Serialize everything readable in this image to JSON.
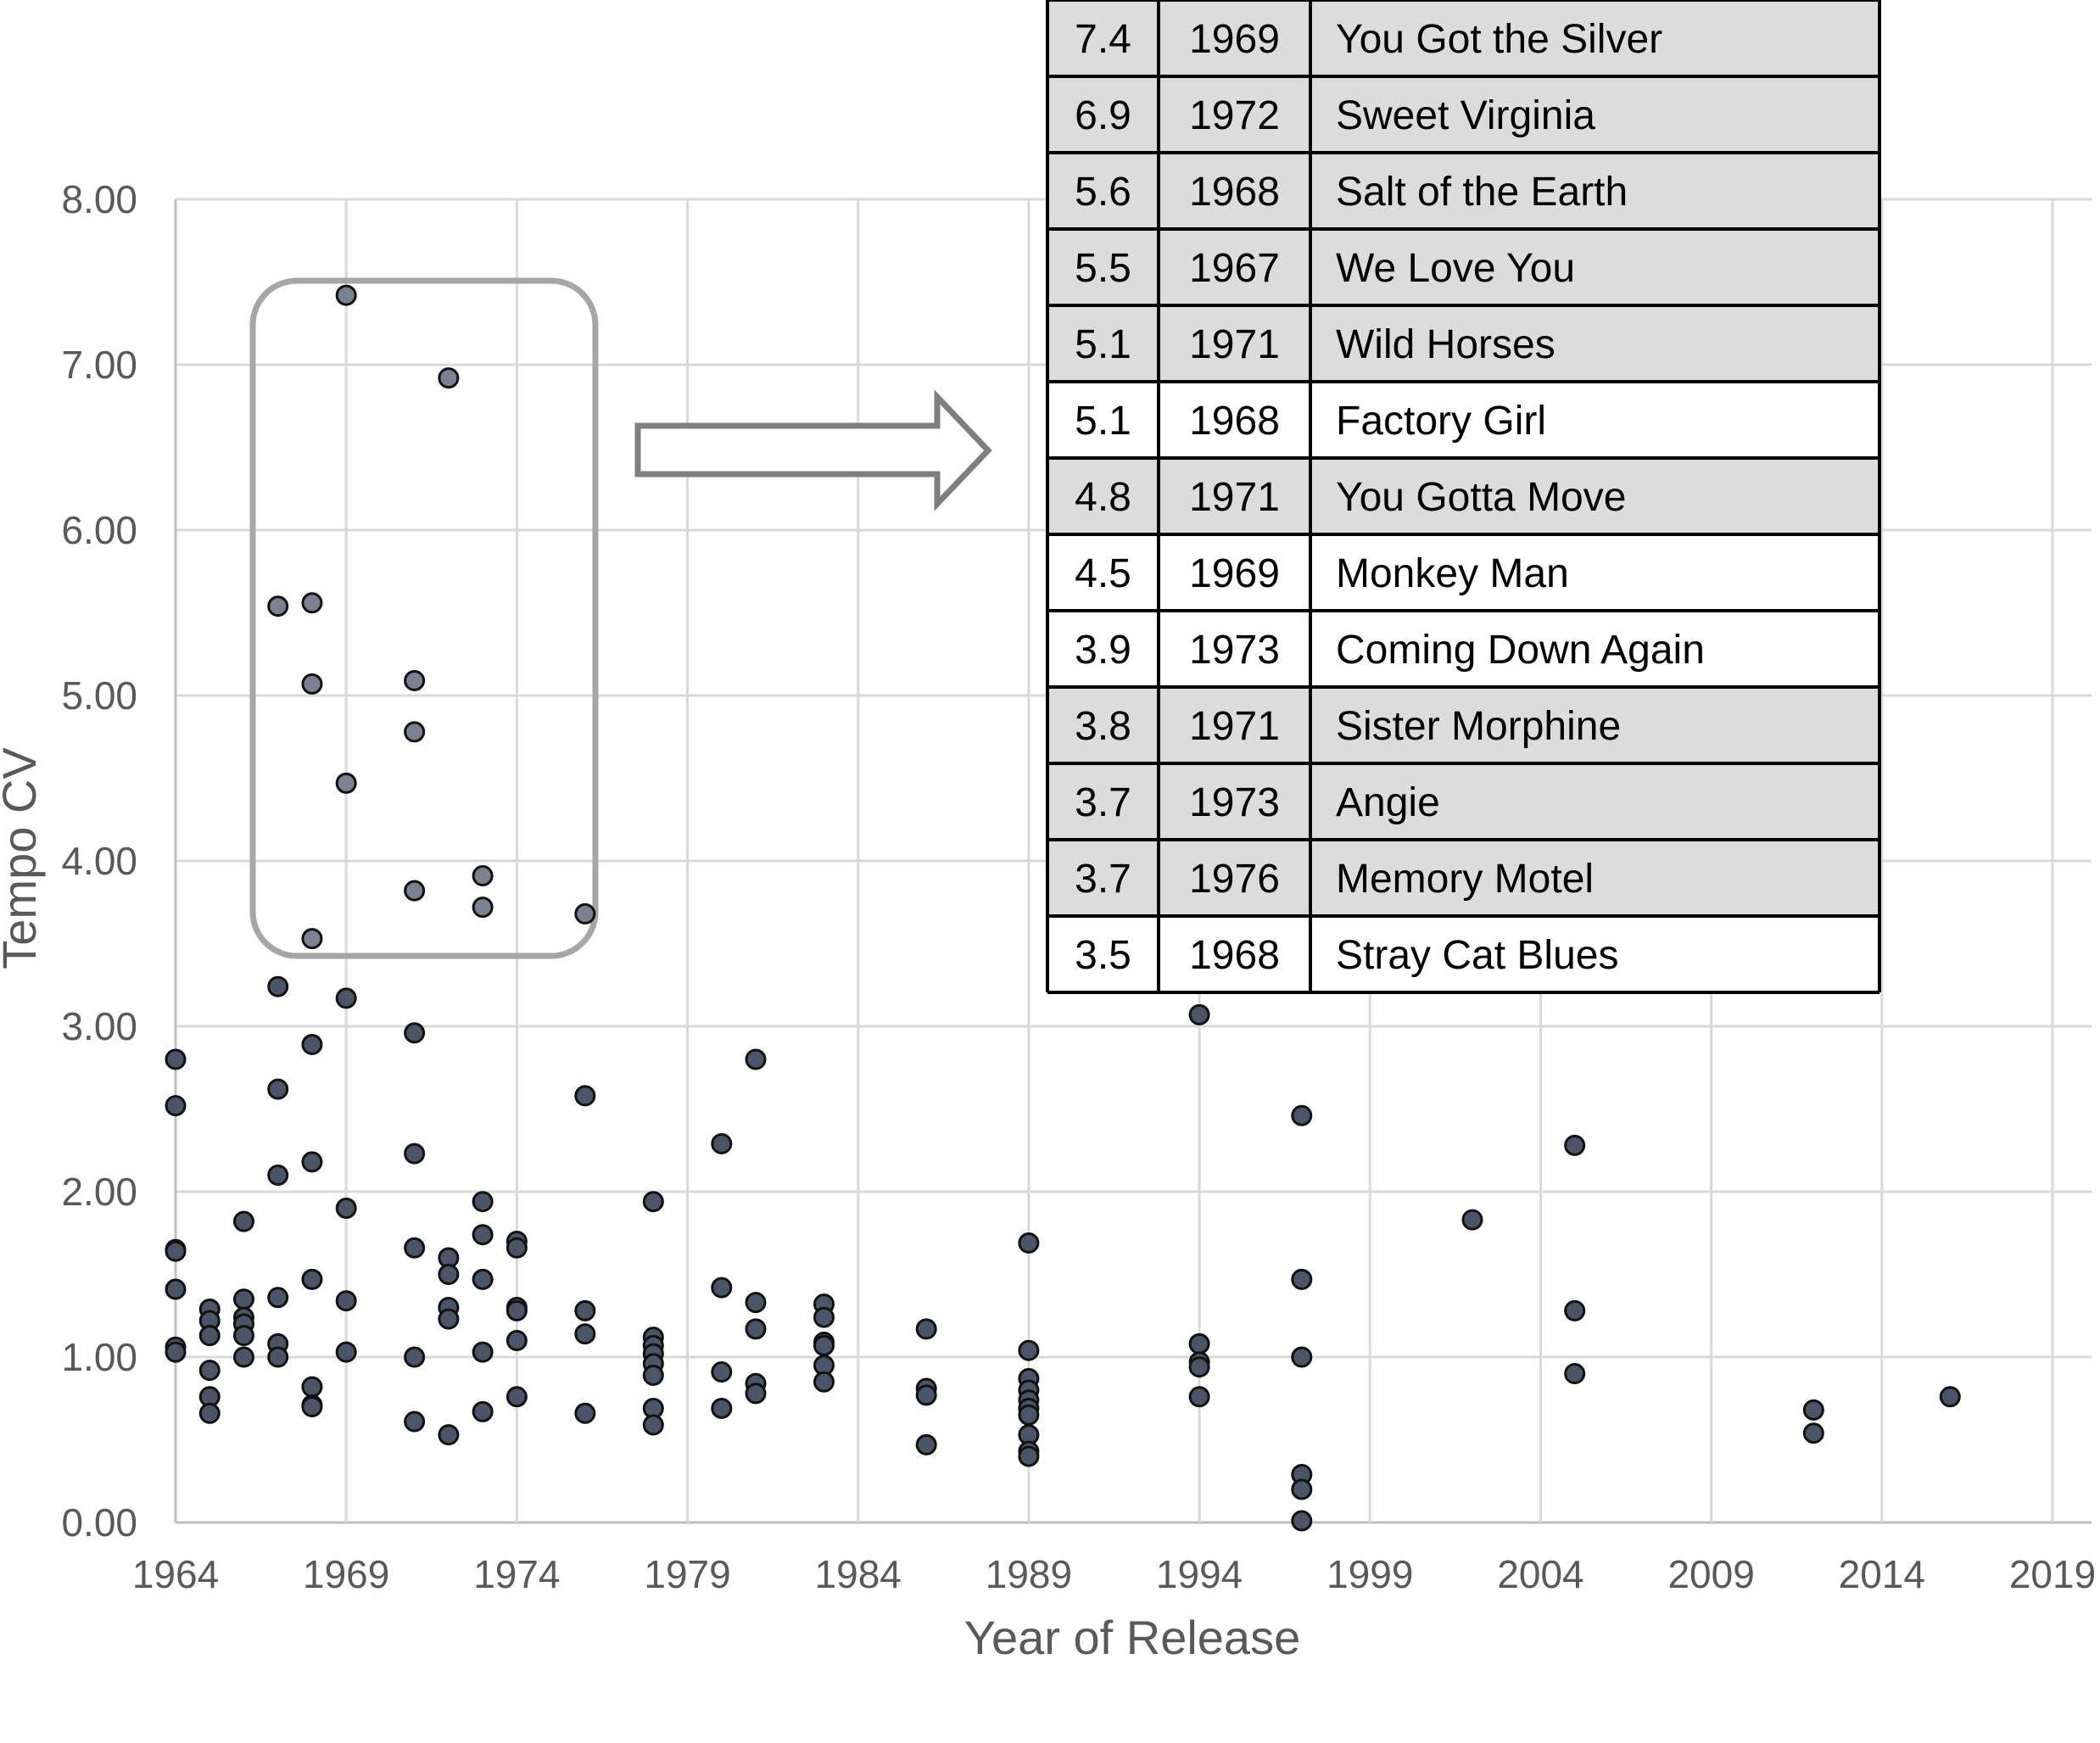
{
  "chart_data": {
    "type": "scatter",
    "title": "",
    "xlabel": "Year of Release",
    "ylabel": "Tempo CV",
    "xlim": [
      1964,
      2020
    ],
    "ylim": [
      0,
      8
    ],
    "x_ticks": [
      "1964",
      "1969",
      "1974",
      "1979",
      "1984",
      "1989",
      "1994",
      "1999",
      "2004",
      "2009",
      "2014",
      "2019"
    ],
    "y_ticks": [
      "0.00",
      "1.00",
      "2.00",
      "3.00",
      "4.00",
      "5.00",
      "6.00",
      "7.00",
      "8.00"
    ],
    "grid": true,
    "legend": "none",
    "colors": {
      "point_fill": "#4a5568",
      "point_edge": "#111111",
      "highlight_fill": "#7a8190",
      "gridline": "#d9d9d9",
      "axis_text": "#595959",
      "callout_stroke": "#a6a6a6",
      "arrow_stroke": "#7f7f7f",
      "row_shade": "#dcdcdc"
    },
    "points": [
      {
        "x": 1969,
        "y": 7.42
      },
      {
        "x": 1972,
        "y": 6.92
      },
      {
        "x": 1967,
        "y": 5.54
      },
      {
        "x": 1968,
        "y": 5.56
      },
      {
        "x": 1968,
        "y": 5.07
      },
      {
        "x": 1971,
        "y": 5.09
      },
      {
        "x": 1971,
        "y": 4.78
      },
      {
        "x": 1969,
        "y": 4.47
      },
      {
        "x": 1971,
        "y": 3.82
      },
      {
        "x": 1973,
        "y": 3.91
      },
      {
        "x": 1973,
        "y": 3.72
      },
      {
        "x": 1976,
        "y": 3.68
      },
      {
        "x": 1968,
        "y": 3.53
      },
      {
        "x": 1967,
        "y": 3.24
      },
      {
        "x": 1969,
        "y": 3.17
      },
      {
        "x": 1968,
        "y": 2.89
      },
      {
        "x": 1971,
        "y": 2.96
      },
      {
        "x": 1964,
        "y": 2.8
      },
      {
        "x": 1964,
        "y": 2.52
      },
      {
        "x": 1967,
        "y": 2.62
      },
      {
        "x": 1976,
        "y": 2.58
      },
      {
        "x": 1981,
        "y": 2.8
      },
      {
        "x": 1980,
        "y": 2.29
      },
      {
        "x": 1971,
        "y": 2.23
      },
      {
        "x": 1968,
        "y": 2.18
      },
      {
        "x": 1967,
        "y": 2.1
      },
      {
        "x": 1973,
        "y": 1.94
      },
      {
        "x": 1978,
        "y": 1.94
      },
      {
        "x": 1969,
        "y": 1.9
      },
      {
        "x": 1966,
        "y": 1.82
      },
      {
        "x": 1974,
        "y": 1.7
      },
      {
        "x": 1973,
        "y": 1.74
      },
      {
        "x": 1974,
        "y": 1.66
      },
      {
        "x": 1971,
        "y": 1.66
      },
      {
        "x": 1964,
        "y": 1.65
      },
      {
        "x": 1964,
        "y": 1.64
      },
      {
        "x": 1972,
        "y": 1.6
      },
      {
        "x": 1972,
        "y": 1.5
      },
      {
        "x": 1973,
        "y": 1.47
      },
      {
        "x": 1968,
        "y": 1.47
      },
      {
        "x": 1964,
        "y": 1.41
      },
      {
        "x": 1980,
        "y": 1.42
      },
      {
        "x": 1967,
        "y": 1.36
      },
      {
        "x": 1966,
        "y": 1.35
      },
      {
        "x": 1969,
        "y": 1.34
      },
      {
        "x": 1981,
        "y": 1.33
      },
      {
        "x": 1983,
        "y": 1.32
      },
      {
        "x": 1965,
        "y": 1.29
      },
      {
        "x": 1972,
        "y": 1.3
      },
      {
        "x": 1974,
        "y": 1.3
      },
      {
        "x": 1974,
        "y": 1.28
      },
      {
        "x": 1976,
        "y": 1.28
      },
      {
        "x": 1966,
        "y": 1.24
      },
      {
        "x": 1965,
        "y": 1.22
      },
      {
        "x": 1972,
        "y": 1.23
      },
      {
        "x": 1983,
        "y": 1.24
      },
      {
        "x": 1966,
        "y": 1.2
      },
      {
        "x": 1981,
        "y": 1.17
      },
      {
        "x": 1986,
        "y": 1.17
      },
      {
        "x": 1976,
        "y": 1.14
      },
      {
        "x": 1965,
        "y": 1.13
      },
      {
        "x": 1966,
        "y": 1.13
      },
      {
        "x": 1978,
        "y": 1.12
      },
      {
        "x": 1974,
        "y": 1.1
      },
      {
        "x": 1967,
        "y": 1.08
      },
      {
        "x": 1978,
        "y": 1.07
      },
      {
        "x": 1983,
        "y": 1.09
      },
      {
        "x": 1983,
        "y": 1.07
      },
      {
        "x": 1964,
        "y": 1.06
      },
      {
        "x": 1964,
        "y": 1.03
      },
      {
        "x": 1989,
        "y": 1.04
      },
      {
        "x": 1969,
        "y": 1.03
      },
      {
        "x": 1973,
        "y": 1.03
      },
      {
        "x": 1978,
        "y": 1.02
      },
      {
        "x": 1994,
        "y": 1.08
      },
      {
        "x": 1966,
        "y": 1.0
      },
      {
        "x": 1967,
        "y": 1.0
      },
      {
        "x": 1971,
        "y": 1.0
      },
      {
        "x": 1997,
        "y": 1.0
      },
      {
        "x": 1978,
        "y": 0.96
      },
      {
        "x": 1994,
        "y": 0.97
      },
      {
        "x": 1983,
        "y": 0.95
      },
      {
        "x": 1994,
        "y": 0.94
      },
      {
        "x": 1965,
        "y": 0.92
      },
      {
        "x": 1980,
        "y": 0.91
      },
      {
        "x": 1978,
        "y": 0.89
      },
      {
        "x": 1989,
        "y": 0.87
      },
      {
        "x": 2005,
        "y": 0.9
      },
      {
        "x": 1981,
        "y": 0.84
      },
      {
        "x": 1983,
        "y": 0.85
      },
      {
        "x": 1968,
        "y": 0.82
      },
      {
        "x": 1981,
        "y": 0.78
      },
      {
        "x": 1986,
        "y": 0.81
      },
      {
        "x": 1986,
        "y": 0.77
      },
      {
        "x": 1989,
        "y": 0.8
      },
      {
        "x": 1965,
        "y": 0.76
      },
      {
        "x": 1974,
        "y": 0.76
      },
      {
        "x": 1989,
        "y": 0.74
      },
      {
        "x": 1994,
        "y": 0.76
      },
      {
        "x": 2016,
        "y": 0.76
      },
      {
        "x": 1968,
        "y": 0.71
      },
      {
        "x": 1968,
        "y": 0.7
      },
      {
        "x": 1980,
        "y": 0.69
      },
      {
        "x": 1978,
        "y": 0.69
      },
      {
        "x": 1989,
        "y": 0.69
      },
      {
        "x": 1965,
        "y": 0.66
      },
      {
        "x": 1973,
        "y": 0.67
      },
      {
        "x": 1976,
        "y": 0.66
      },
      {
        "x": 1989,
        "y": 0.65
      },
      {
        "x": 2012,
        "y": 0.68
      },
      {
        "x": 1971,
        "y": 0.61
      },
      {
        "x": 1978,
        "y": 0.59
      },
      {
        "x": 1972,
        "y": 0.53
      },
      {
        "x": 1989,
        "y": 0.53
      },
      {
        "x": 2012,
        "y": 0.54
      },
      {
        "x": 1986,
        "y": 0.47
      },
      {
        "x": 1989,
        "y": 0.43
      },
      {
        "x": 1989,
        "y": 0.4
      },
      {
        "x": 1997,
        "y": 0.29
      },
      {
        "x": 1997,
        "y": 0.2
      },
      {
        "x": 1997,
        "y": 0.01
      },
      {
        "x": 1994,
        "y": 3.07
      },
      {
        "x": 1997,
        "y": 2.46
      },
      {
        "x": 2005,
        "y": 2.28
      },
      {
        "x": 2002,
        "y": 1.83
      },
      {
        "x": 1989,
        "y": 1.69
      },
      {
        "x": 1997,
        "y": 1.47
      },
      {
        "x": 2005,
        "y": 1.28
      }
    ],
    "highlight_threshold": 3.5,
    "table": {
      "rows": [
        {
          "value": "7.4",
          "year": "1969",
          "title": "You Got the Silver",
          "shaded": true
        },
        {
          "value": "6.9",
          "year": "1972",
          "title": "Sweet Virginia",
          "shaded": true
        },
        {
          "value": "5.6",
          "year": "1968",
          "title": "Salt of the Earth",
          "shaded": true
        },
        {
          "value": "5.5",
          "year": "1967",
          "title": "We Love You",
          "shaded": true
        },
        {
          "value": "5.1",
          "year": "1971",
          "title": "Wild Horses",
          "shaded": true
        },
        {
          "value": "5.1",
          "year": "1968",
          "title": "Factory Girl",
          "shaded": false
        },
        {
          "value": "4.8",
          "year": "1971",
          "title": "You Gotta Move",
          "shaded": true
        },
        {
          "value": "4.5",
          "year": "1969",
          "title": "Monkey Man",
          "shaded": false
        },
        {
          "value": "3.9",
          "year": "1973",
          "title": "Coming Down Again",
          "shaded": false
        },
        {
          "value": "3.8",
          "year": "1971",
          "title": "Sister Morphine",
          "shaded": true
        },
        {
          "value": "3.7",
          "year": "1973",
          "title": "Angie",
          "shaded": true
        },
        {
          "value": "3.7",
          "year": "1976",
          "title": "Memory Motel",
          "shaded": true
        },
        {
          "value": "3.5",
          "year": "1968",
          "title": "Stray Cat Blues",
          "shaded": false
        }
      ]
    }
  }
}
